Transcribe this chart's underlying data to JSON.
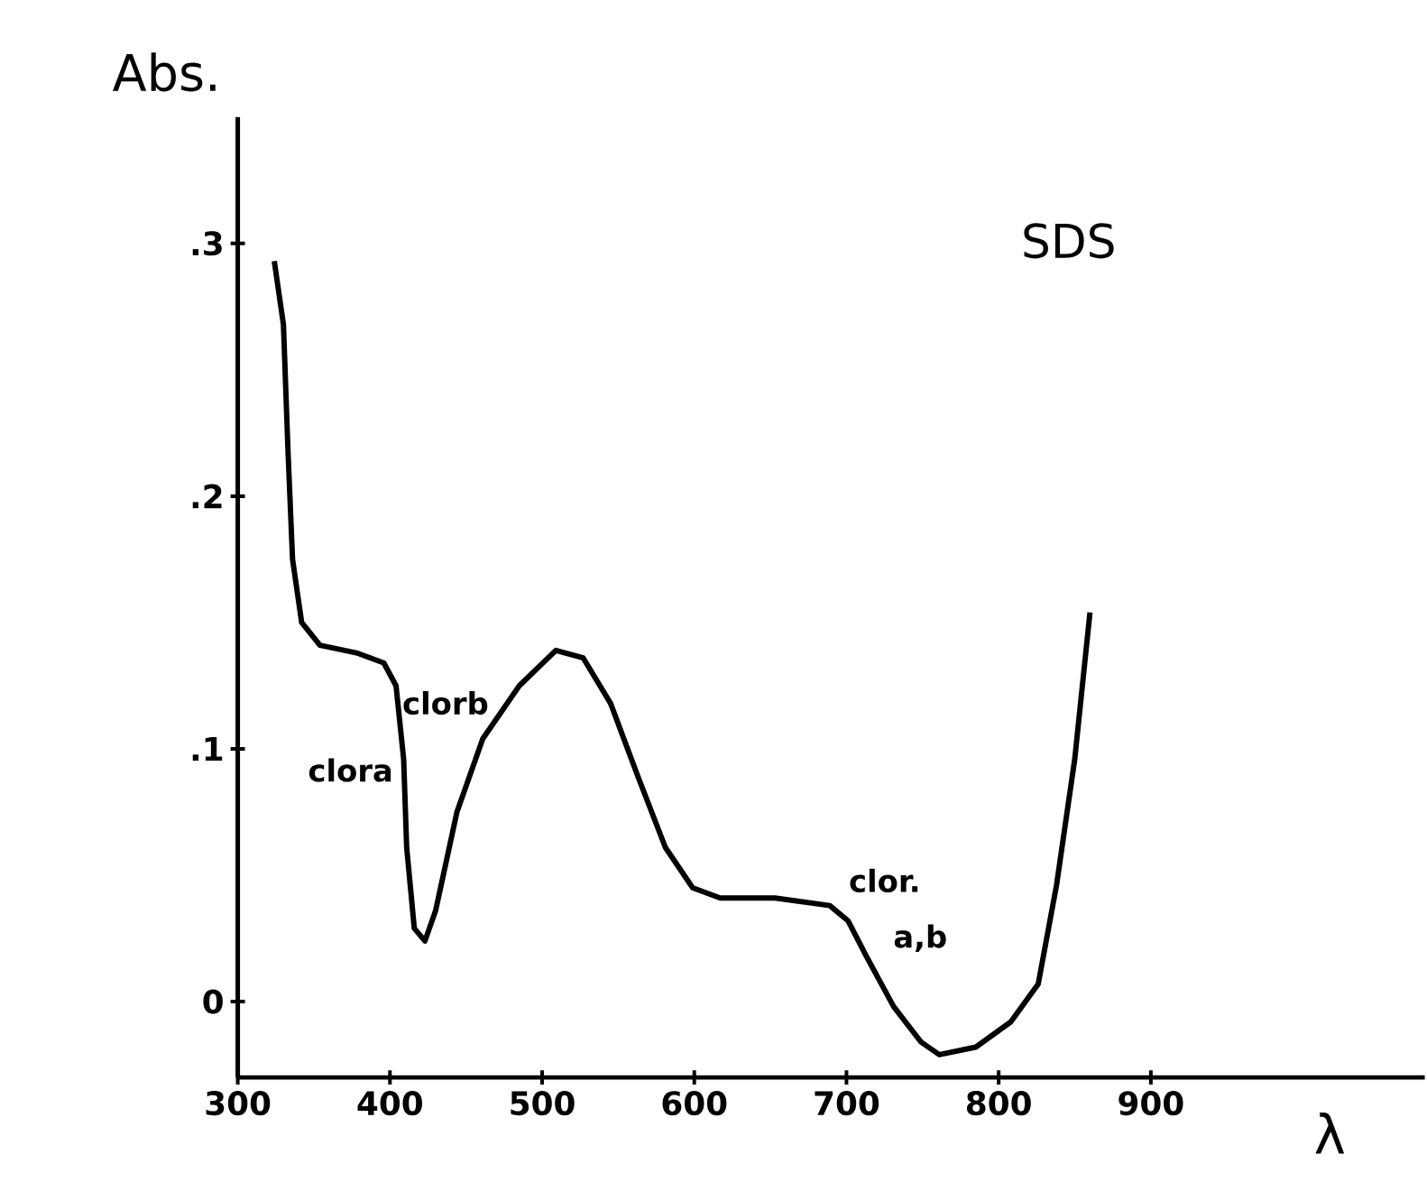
{
  "chart_data": {
    "type": "line",
    "title": "SDS",
    "xlabel": "λ",
    "ylabel": "Abs.",
    "x": [
      324,
      330,
      333,
      336,
      342,
      354,
      378,
      396,
      404,
      409,
      411,
      416,
      423,
      430,
      444,
      461,
      485,
      509,
      527,
      545,
      563,
      581,
      599,
      617,
      653,
      689,
      701,
      713,
      731,
      749,
      761,
      785,
      808,
      826,
      838,
      850,
      860
    ],
    "values": [
      0.293,
      0.268,
      0.218,
      0.175,
      0.15,
      0.141,
      0.138,
      0.134,
      0.125,
      0.096,
      0.061,
      0.029,
      0.024,
      0.036,
      0.075,
      0.104,
      0.125,
      0.139,
      0.136,
      0.118,
      0.089,
      0.061,
      0.045,
      0.041,
      0.041,
      0.038,
      0.032,
      0.018,
      -0.002,
      -0.016,
      -0.021,
      -0.018,
      -0.008,
      0.007,
      0.046,
      0.096,
      0.154
    ],
    "color": "#000000",
    "xlim": [
      300,
      1080
    ],
    "ylim": [
      -0.03,
      0.35
    ],
    "xticks": [
      300,
      400,
      500,
      600,
      700,
      800,
      900
    ],
    "yticks": [
      {
        "value": 0,
        "label": "0"
      },
      {
        "value": 0.1,
        "label": ".1"
      },
      {
        "value": 0.2,
        "label": ".2"
      },
      {
        "value": 0.3,
        "label": ".3"
      }
    ],
    "annotations": [
      "clorb",
      "clora",
      "clor.",
      "a,b"
    ],
    "marker": "none",
    "line_style": "solid"
  }
}
